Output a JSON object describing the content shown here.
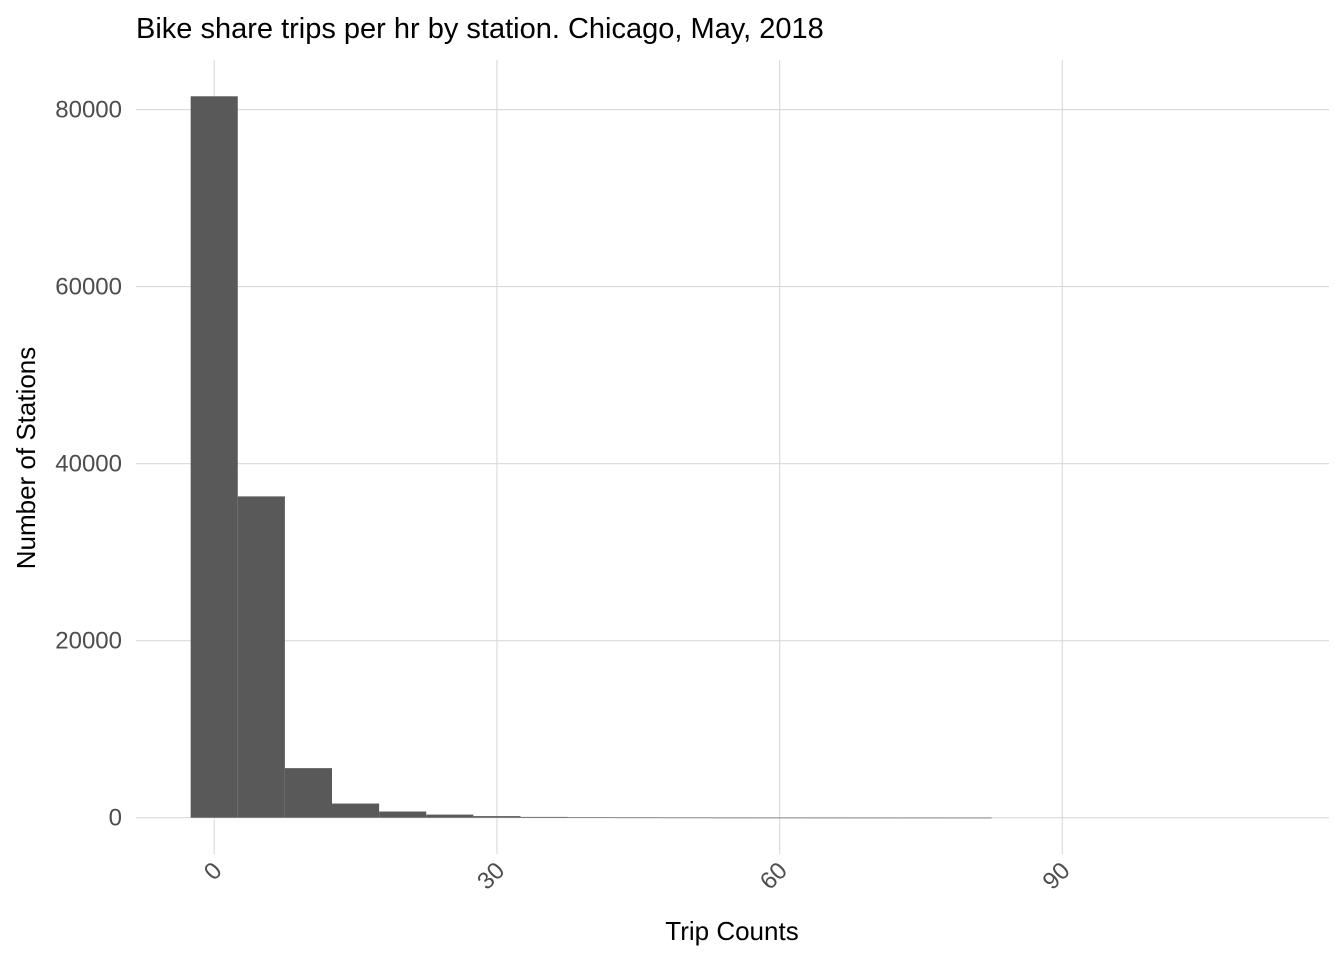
{
  "chart_data": {
    "type": "bar",
    "title": "Bike share trips per hr by station. Chicago, May, 2018",
    "xlabel": "Trip Counts",
    "ylabel": "Number of Stations",
    "bin_width": 5,
    "bins": [
      {
        "start": -2.5,
        "end": 2.5,
        "count": 81500
      },
      {
        "start": 2.5,
        "end": 7.5,
        "count": 36300
      },
      {
        "start": 7.5,
        "end": 12.5,
        "count": 5600
      },
      {
        "start": 12.5,
        "end": 17.5,
        "count": 1600
      },
      {
        "start": 17.5,
        "end": 22.5,
        "count": 700
      },
      {
        "start": 22.5,
        "end": 27.5,
        "count": 350
      },
      {
        "start": 27.5,
        "end": 32.5,
        "count": 180
      },
      {
        "start": 32.5,
        "end": 37.5,
        "count": 90
      },
      {
        "start": 37.5,
        "end": 42.5,
        "count": 45
      },
      {
        "start": 42.5,
        "end": 47.5,
        "count": 25
      },
      {
        "start": 47.5,
        "end": 52.5,
        "count": 15
      },
      {
        "start": 52.5,
        "end": 57.5,
        "count": 10
      },
      {
        "start": 57.5,
        "end": 62.5,
        "count": 7
      },
      {
        "start": 62.5,
        "end": 67.5,
        "count": 5
      },
      {
        "start": 67.5,
        "end": 72.5,
        "count": 4
      },
      {
        "start": 72.5,
        "end": 77.5,
        "count": 3
      },
      {
        "start": 77.5,
        "end": 82.5,
        "count": 2
      }
    ],
    "x_ticks": [
      0,
      30,
      60,
      90
    ],
    "x_tick_labels": [
      "0",
      "30",
      "60",
      "90"
    ],
    "y_ticks": [
      0,
      20000,
      40000,
      60000,
      80000
    ],
    "y_tick_labels": [
      "0",
      "20000",
      "40000",
      "60000",
      "80000"
    ],
    "xlim": [
      -8.3,
      118.3
    ],
    "ylim": [
      -4100,
      85600
    ],
    "grid": true,
    "legend": "none",
    "bar_color": "#595959",
    "grid_color": "#d9d9d9"
  }
}
